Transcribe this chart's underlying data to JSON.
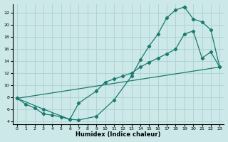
{
  "xlabel": "Humidex (Indice chaleur)",
  "bg_color": "#cce8e8",
  "line_color": "#1a7a6e",
  "grid_color": "#b0d4d4",
  "xlim": [
    -0.5,
    23.5
  ],
  "ylim": [
    3.5,
    23.5
  ],
  "xticks": [
    0,
    1,
    2,
    3,
    4,
    5,
    6,
    7,
    8,
    9,
    10,
    11,
    12,
    13,
    14,
    15,
    16,
    17,
    18,
    19,
    20,
    21,
    22,
    23
  ],
  "yticks": [
    4,
    6,
    8,
    10,
    12,
    14,
    16,
    18,
    20,
    22
  ],
  "line1_x": [
    0,
    1,
    2,
    3,
    4,
    5,
    6,
    7,
    9,
    11,
    13,
    14,
    15,
    16,
    17,
    18,
    19
  ],
  "line1_y": [
    7.8,
    6.8,
    6.2,
    5.2,
    5.0,
    4.7,
    4.3,
    4.2,
    4.8,
    7.5,
    11.5,
    14.2,
    16.5,
    18.5,
    21.2,
    22.5,
    23.0
  ],
  "line2_x": [
    19,
    20,
    21,
    22,
    23
  ],
  "line2_y": [
    23.0,
    21.0,
    20.5,
    19.2,
    13.0
  ],
  "line3_x": [
    0,
    3,
    6,
    7,
    9,
    10,
    11,
    12,
    13,
    14,
    15,
    16,
    17,
    18,
    19,
    20,
    21,
    22,
    23
  ],
  "line3_y": [
    7.8,
    6.0,
    4.3,
    7.0,
    9.0,
    10.5,
    11.0,
    11.5,
    12.0,
    13.0,
    13.8,
    14.5,
    15.2,
    16.0,
    18.5,
    19.0,
    14.5,
    15.5,
    13.0
  ],
  "line4_x": [
    0,
    23
  ],
  "line4_y": [
    7.8,
    13.0
  ]
}
